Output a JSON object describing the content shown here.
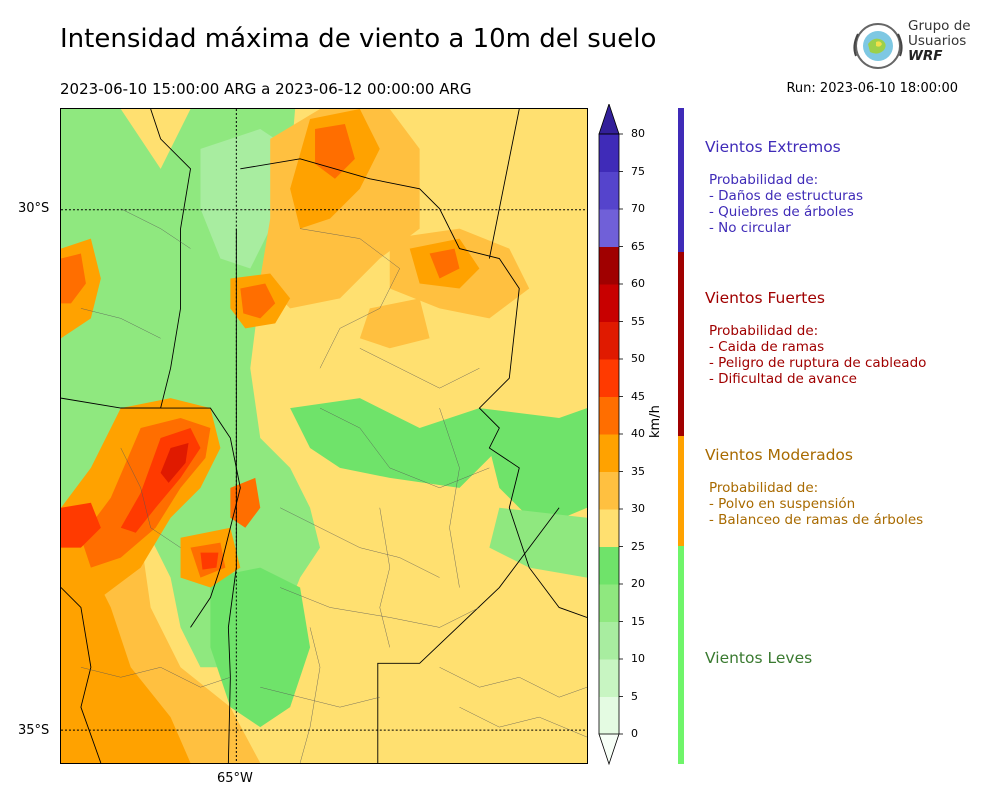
{
  "header": {
    "title": "Intensidad máxima de viento a 10m del suelo",
    "period": "2023-06-10 15:00:00 ARG  a  2023-06-12 00:00:00 ARG",
    "run": "Run: 2023-06-10 18:00:00"
  },
  "logo": {
    "line1": "Grupo de",
    "line2": "Usuarios",
    "line3": "WRF"
  },
  "map": {
    "lat_labels": [
      "30°S",
      "35°S"
    ],
    "lon_labels": [
      "65°W"
    ]
  },
  "colorbar": {
    "unit": "km/h",
    "ticks": [
      "0",
      "5",
      "10",
      "15",
      "20",
      "25",
      "30",
      "35",
      "40",
      "45",
      "50",
      "55",
      "60",
      "65",
      "70",
      "75",
      "80"
    ],
    "colors": [
      "#f7fff7",
      "#e4fbe2",
      "#c8f5c2",
      "#a8eda0",
      "#8fe87f",
      "#6fe36a",
      "#ffe070",
      "#ffc040",
      "#ffa200",
      "#ff6e00",
      "#ff3a00",
      "#e01a00",
      "#c80000",
      "#a00000",
      "#7060d8",
      "#5544cc",
      "#3f2bb8",
      "#33209a"
    ]
  },
  "categories": [
    {
      "title": "Vientos Extremos",
      "color": "#3f2bb8",
      "lines": [
        "Probabilidad de:",
        "- Daños de estructuras",
        "- Quiebres de árboles",
        "- No circular"
      ]
    },
    {
      "title": "Vientos Fuertes",
      "color": "#a00000",
      "lines": [
        "Probabilidad de:",
        "- Caida de ramas",
        "- Peligro de ruptura de cableado",
        "- Dificultad de avance"
      ]
    },
    {
      "title": "Vientos Moderados",
      "color": "#a86a00",
      "bar_color": "#ffa200",
      "lines": [
        "Probabilidad de:",
        "- Polvo en suspensión",
        "- Balanceo de ramas de árboles"
      ]
    },
    {
      "title": "Vientos Leves",
      "color": "#3a7a30",
      "bar_color": "#6ff56a",
      "lines": []
    }
  ]
}
